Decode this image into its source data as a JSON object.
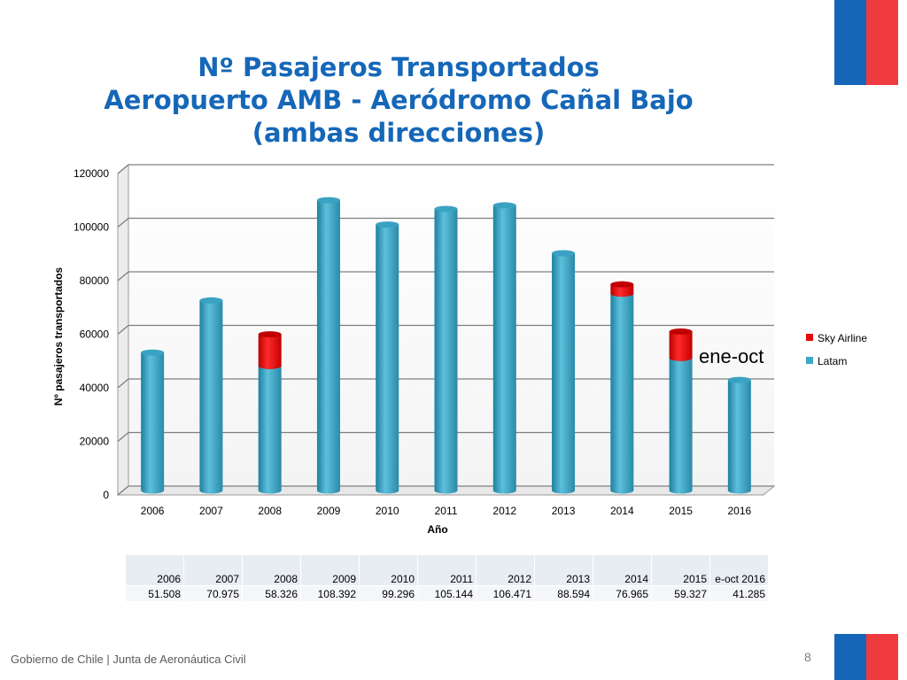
{
  "title": {
    "line1": "Nº Pasajeros Transportados",
    "line2": "Aeropuerto AMB - Aeródromo Cañal Bajo",
    "line3": "(ambas direcciones)"
  },
  "colors": {
    "flag_blue": "#1565b8",
    "flag_red": "#ef3b40",
    "title": "#1567b8",
    "latam": "#3fa6c6",
    "sky": "#e80a0a"
  },
  "chart_data": {
    "type": "bar",
    "stacked": true,
    "categories": [
      "2006",
      "2007",
      "2008",
      "2009",
      "2010",
      "2011",
      "2012",
      "2013",
      "2014",
      "2015",
      "2016"
    ],
    "series": [
      {
        "name": "Latam",
        "values": [
          51508,
          70975,
          46500,
          108392,
          99296,
          105144,
          106471,
          88594,
          73500,
          49500,
          41285
        ]
      },
      {
        "name": "Sky Airline",
        "values": [
          0,
          0,
          11826,
          0,
          0,
          0,
          0,
          0,
          3465,
          9827,
          0
        ]
      }
    ],
    "xlabel": "Año",
    "ylabel": "Nº pasajeros transportados",
    "ylim": [
      0,
      120000
    ],
    "yticks": [
      "0",
      "20000",
      "40000",
      "60000",
      "80000",
      "100000",
      "120000"
    ],
    "legend_position": "right",
    "grid": true,
    "annotation": "ene-oct"
  },
  "table": {
    "years": [
      "2006",
      "2007",
      "2008",
      "2009",
      "2010",
      "2011",
      "2012",
      "2013",
      "2014",
      "2015",
      "e-oct 2016"
    ],
    "values": [
      "51.508",
      "70.975",
      "58.326",
      "108.392",
      "99.296",
      "105.144",
      "106.471",
      "88.594",
      "76.965",
      "59.327",
      "41.285"
    ]
  },
  "footer": "Gobierno de Chile | Junta de Aeronáutica Civil",
  "page_number": "8"
}
